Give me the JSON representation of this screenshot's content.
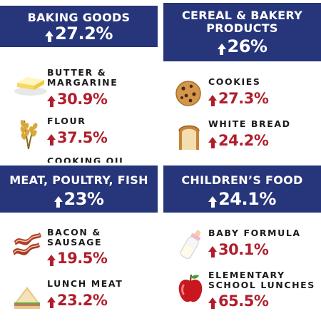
{
  "panels": {
    "baking": {
      "title": "BAKING GOODS",
      "pct": "27.2%",
      "items": [
        {
          "label": "BUTTER &",
          "label2": "MARGARINE",
          "value": "30.9%",
          "icon": "butter-icon"
        },
        {
          "label": "FLOUR",
          "label2": "",
          "value": "37.5%",
          "icon": "wheat-icon"
        }
      ],
      "cut_label": "COOKING OIL"
    },
    "cereal": {
      "title": "CEREAL & BAKERY",
      "title2": "PRODUCTS",
      "pct": "26%",
      "items": [
        {
          "label": "COOKIES",
          "label2": "",
          "value": "27.3%",
          "icon": "cookie-icon"
        },
        {
          "label": "WHITE BREAD",
          "label2": "",
          "value": "24.2%",
          "icon": "bread-icon"
        }
      ]
    },
    "meat": {
      "title": "MEAT, POULTRY, FISH",
      "pct": "23%",
      "items": [
        {
          "label": "BACON &",
          "label2": "SAUSAGE",
          "value": "19.5%",
          "icon": "bacon-icon"
        },
        {
          "label": "LUNCH MEAT",
          "label2": "",
          "value": "23.2%",
          "icon": "sandwich-icon"
        }
      ]
    },
    "children": {
      "title": "CHILDREN’S FOOD",
      "pct": "24.1%",
      "items": [
        {
          "label": "BABY FORMULA",
          "label2": "",
          "value": "30.1%",
          "icon": "baby-bottle-icon"
        },
        {
          "label": "ELEMENTARY",
          "label2": "SCHOOL LUNCHES",
          "value": "65.5%",
          "icon": "apple-icon"
        }
      ]
    }
  },
  "colors": {
    "banner": "#27357a",
    "value": "#b01e2c",
    "text": "#1a1a1a"
  }
}
